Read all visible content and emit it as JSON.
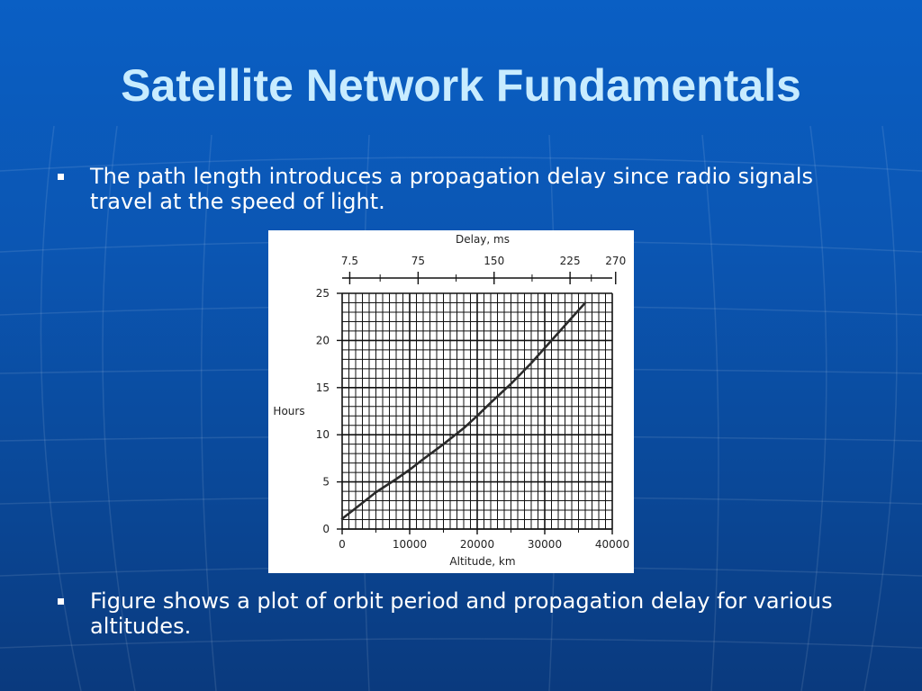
{
  "slide": {
    "title": "Satellite Network Fundamentals",
    "bullets": [
      "The path length introduces a propagation delay since radio signals travel at the speed of light.",
      "Figure shows a plot of orbit period and propagation delay for various altitudes."
    ]
  },
  "colors": {
    "title": "#c8ecff",
    "curve": "#2a2a2a",
    "grid": "#111111"
  },
  "chart_data": {
    "type": "line",
    "title": "",
    "xlabel": "Altitude, km",
    "ylabel": "Hours",
    "top_axis_label": "Delay, ms",
    "xlim": [
      0,
      40000
    ],
    "ylim": [
      0,
      25
    ],
    "x_ticks": [
      0,
      10000,
      20000,
      30000,
      40000
    ],
    "y_ticks": [
      0,
      5,
      10,
      15,
      20,
      25
    ],
    "top_ticks": [
      {
        "label": "7.5",
        "altitude": 1125
      },
      {
        "label": "75",
        "altitude": 11250
      },
      {
        "label": "150",
        "altitude": 22500
      },
      {
        "label": "225",
        "altitude": 33750
      },
      {
        "label": "270",
        "altitude": 40500
      }
    ],
    "grid": true,
    "series": [
      {
        "name": "",
        "x": [
          0,
          2000,
          5000,
          8000,
          10000,
          12000,
          15000,
          18000,
          20000,
          22000,
          25000,
          28000,
          30000,
          33000,
          36000
        ],
        "y": [
          1.1,
          2.2,
          3.9,
          5.3,
          6.3,
          7.4,
          9.0,
          10.7,
          12.0,
          13.4,
          15.4,
          17.6,
          19.2,
          21.6,
          24.0
        ]
      }
    ]
  }
}
